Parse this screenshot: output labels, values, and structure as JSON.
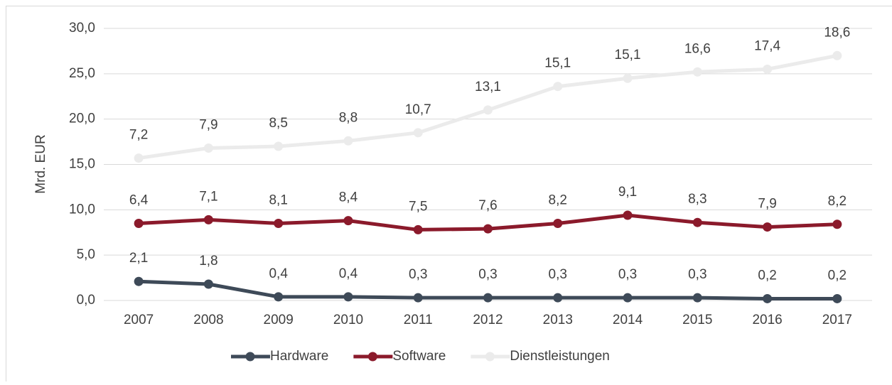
{
  "chart_data": {
    "type": "line",
    "stacked": true,
    "ylabel": "Mrd. EUR",
    "categories": [
      "2007",
      "2008",
      "2009",
      "2010",
      "2011",
      "2012",
      "2013",
      "2014",
      "2015",
      "2016",
      "2017"
    ],
    "series": [
      {
        "name": "Hardware",
        "color": "#3e4a58",
        "values": [
          2.1,
          1.8,
          0.4,
          0.4,
          0.3,
          0.3,
          0.3,
          0.3,
          0.3,
          0.2,
          0.2
        ],
        "value_labels": [
          "2,1",
          "1,8",
          "0,4",
          "0,4",
          "0,3",
          "0,3",
          "0,3",
          "0,3",
          "0,3",
          "0,2",
          "0,2"
        ]
      },
      {
        "name": "Software",
        "color": "#8b1a2b",
        "values": [
          6.4,
          7.1,
          8.1,
          8.4,
          7.5,
          7.6,
          8.2,
          9.1,
          8.3,
          7.9,
          8.2
        ],
        "value_labels": [
          "6,4",
          "7,1",
          "8,1",
          "8,4",
          "7,5",
          "7,6",
          "8,2",
          "9,1",
          "8,3",
          "7,9",
          "8,2"
        ]
      },
      {
        "name": "Dienstleistungen",
        "color": "#ebebeb",
        "values": [
          7.2,
          7.9,
          8.5,
          8.8,
          10.7,
          13.1,
          15.1,
          15.1,
          16.6,
          17.4,
          18.6
        ],
        "value_labels": [
          "7,2",
          "7,9",
          "8,5",
          "8,8",
          "10,7",
          "13,1",
          "15,1",
          "15,1",
          "16,6",
          "17,4",
          "18,6"
        ]
      }
    ],
    "ylim": [
      0,
      30
    ],
    "yticks": [
      {
        "value": 0,
        "label": "0,0"
      },
      {
        "value": 5,
        "label": "5,0"
      },
      {
        "value": 10,
        "label": "10,0"
      },
      {
        "value": 15,
        "label": "15,0"
      },
      {
        "value": 20,
        "label": "20,0"
      },
      {
        "value": 25,
        "label": "25,0"
      },
      {
        "value": 30,
        "label": "30,0"
      }
    ],
    "grid": true,
    "legend": "bottom"
  }
}
